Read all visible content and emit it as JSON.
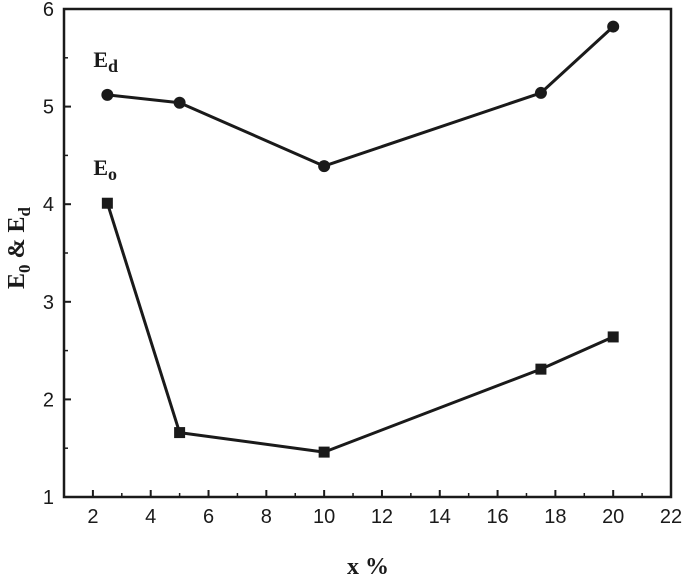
{
  "chart_data": {
    "type": "line",
    "title": "",
    "xlabel": "x %",
    "ylabel": "E0 & Ed",
    "ylabel_parts": {
      "e1": "E",
      "sub1": "0",
      "amp": " & ",
      "e2": "E",
      "sub2": "d"
    },
    "xlim": [
      1,
      22
    ],
    "ylim": [
      1,
      6
    ],
    "xticks": [
      2,
      4,
      6,
      8,
      10,
      12,
      14,
      16,
      18,
      20,
      22
    ],
    "yticks": [
      1,
      2,
      3,
      4,
      5,
      6
    ],
    "grid": false,
    "legend": "none",
    "series": [
      {
        "name": "Ed",
        "label_main": "E",
        "label_sub": "d",
        "marker": "circle",
        "color": "#1a1a1a",
        "x": [
          2.5,
          5,
          10,
          17.5,
          20
        ],
        "y": [
          5.12,
          5.04,
          4.39,
          5.14,
          5.82
        ]
      },
      {
        "name": "Eo",
        "label_main": "E",
        "label_sub": "o",
        "marker": "square",
        "color": "#1a1a1a",
        "x": [
          2.5,
          5,
          10,
          17.5,
          20
        ],
        "y": [
          4.01,
          1.66,
          1.46,
          2.31,
          2.64
        ]
      }
    ]
  }
}
